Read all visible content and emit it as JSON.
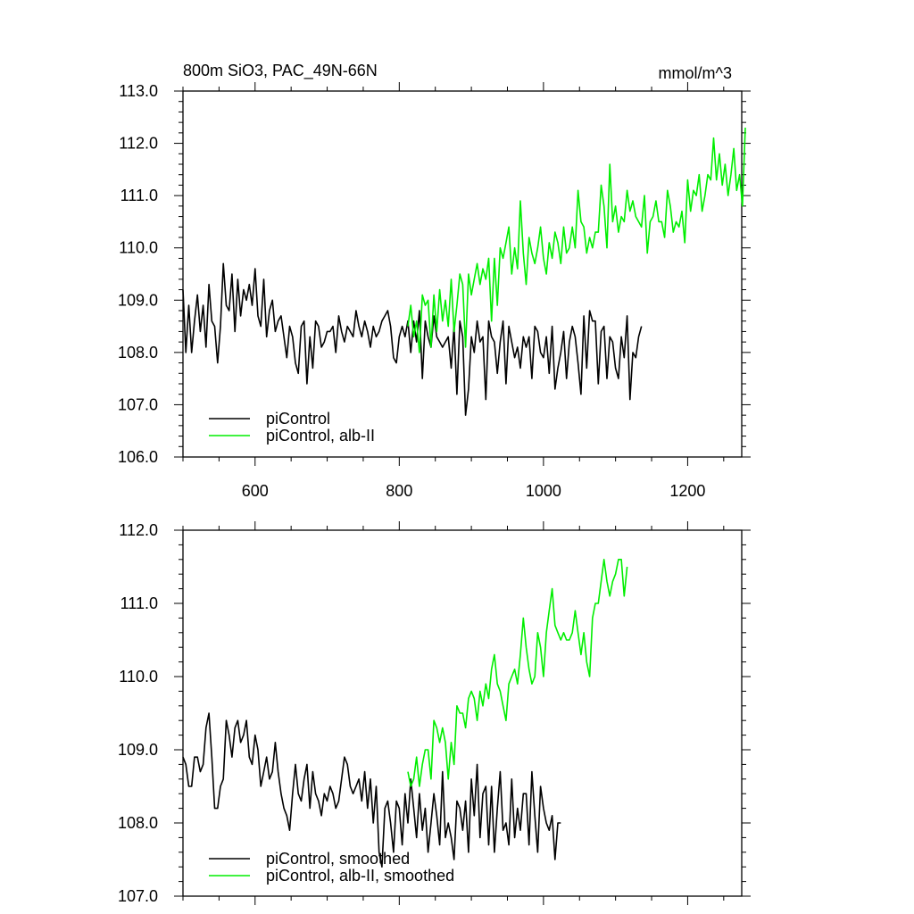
{
  "figure": {
    "title": "800m SiO3, PAC_49N-66N",
    "units": "mmol/m^3"
  },
  "colors": {
    "control": "#000000",
    "alb": "#00ee00",
    "axis": "#000000"
  },
  "chart_data": [
    {
      "type": "line",
      "xlim": [
        500,
        1275
      ],
      "ylim": [
        106.0,
        113.0
      ],
      "xticks": [
        600,
        800,
        1000,
        1200
      ],
      "xtick_labels": [
        "600",
        "800",
        "1000",
        "1200"
      ],
      "yticks": [
        106,
        107,
        108,
        109,
        110,
        111,
        112,
        113
      ],
      "ytick_labels": [
        "106.0",
        "107.0",
        "108.0",
        "109.0",
        "110.0",
        "111.0",
        "112.0",
        "113.0"
      ],
      "legend": "bottom-left",
      "series": [
        {
          "name": "piControl",
          "color": "#000000",
          "x_start": 500,
          "x_step": 4,
          "values": [
            109.2,
            108.0,
            108.9,
            108.0,
            108.6,
            109.1,
            108.4,
            108.9,
            108.1,
            109.3,
            108.6,
            108.5,
            107.8,
            108.5,
            109.7,
            108.9,
            108.8,
            109.5,
            108.4,
            109.4,
            108.7,
            109.2,
            109.0,
            109.3,
            108.9,
            109.6,
            108.7,
            108.5,
            109.4,
            108.3,
            108.8,
            109.0,
            108.4,
            108.6,
            108.7,
            108.3,
            107.9,
            108.5,
            108.3,
            107.8,
            107.6,
            108.5,
            108.6,
            107.4,
            108.3,
            107.7,
            108.6,
            108.5,
            108.1,
            108.2,
            108.4,
            108.4,
            108.5,
            108.0,
            108.7,
            108.4,
            108.2,
            108.5,
            108.4,
            108.3,
            108.8,
            108.5,
            108.3,
            108.6,
            108.4,
            108.1,
            108.5,
            108.3,
            108.4,
            108.6,
            108.7,
            108.8,
            108.5,
            107.9,
            107.8,
            108.3,
            108.5,
            108.3,
            108.6,
            108.0,
            108.6,
            108.2,
            108.8,
            107.5,
            108.6,
            108.3,
            108.1,
            108.7,
            108.3,
            108.2,
            108.1,
            108.2,
            108.3,
            107.7,
            108.5,
            107.2,
            108.6,
            108.3,
            106.8,
            107.3,
            108.3,
            108.0,
            108.6,
            108.2,
            108.3,
            107.1,
            108.6,
            108.3,
            108.2,
            107.6,
            108.2,
            108.6,
            107.4,
            108.5,
            108.2,
            107.9,
            108.1,
            107.7,
            108.3,
            108.1,
            108.3,
            107.5,
            108.5,
            108.4,
            108.0,
            107.9,
            108.3,
            107.6,
            108.5,
            107.3,
            107.7,
            108.0,
            108.4,
            107.5,
            108.2,
            108.5,
            108.3,
            107.8,
            107.2,
            108.7,
            107.7,
            108.8,
            108.6,
            108.6,
            107.4,
            108.4,
            108.5,
            107.5,
            108.3,
            108.2,
            107.7,
            107.5,
            108.3,
            107.9,
            108.7,
            107.1,
            108.0,
            107.9,
            108.3,
            108.5
          ]
        },
        {
          "name": "piControl, alb-II",
          "color": "#00ee00",
          "x_start": 812,
          "x_step": 4,
          "values": [
            108.5,
            108.9,
            108.3,
            108.6,
            108.0,
            109.1,
            108.9,
            109.0,
            108.1,
            109.1,
            108.4,
            109.2,
            108.6,
            109.0,
            108.5,
            109.4,
            108.4,
            108.9,
            109.5,
            109.3,
            108.1,
            109.5,
            109.1,
            109.4,
            109.7,
            109.3,
            109.6,
            109.4,
            109.8,
            108.6,
            109.8,
            108.9,
            110.0,
            109.8,
            110.1,
            110.4,
            109.5,
            110.0,
            109.6,
            110.9,
            109.9,
            109.3,
            110.2,
            109.9,
            109.7,
            110.0,
            110.4,
            109.8,
            109.5,
            110.1,
            109.8,
            110.3,
            110.1,
            109.7,
            110.4,
            109.9,
            110.0,
            110.4,
            110.0,
            111.1,
            110.5,
            110.4,
            109.9,
            110.2,
            110.0,
            110.3,
            110.3,
            111.2,
            110.8,
            110.0,
            111.6,
            110.5,
            110.8,
            110.3,
            110.6,
            110.5,
            111.1,
            110.7,
            110.9,
            110.6,
            110.5,
            110.4,
            111.0,
            109.9,
            110.5,
            110.6,
            110.9,
            110.5,
            110.5,
            110.2,
            111.1,
            110.8,
            110.3,
            110.5,
            110.4,
            110.7,
            110.1,
            111.3,
            110.7,
            111.1,
            111.0,
            111.4,
            110.7,
            111.0,
            111.4,
            111.3,
            112.1,
            111.3,
            111.8,
            111.2,
            111.6,
            111.0,
            111.4,
            111.9,
            111.1,
            111.4,
            110.8,
            112.3
          ]
        }
      ]
    },
    {
      "type": "line",
      "xlim": [
        500,
        1275
      ],
      "ylim": [
        107.0,
        112.0
      ],
      "xticks": [
        600,
        800,
        1000,
        1200
      ],
      "yticks": [
        107,
        108,
        109,
        110,
        111,
        112
      ],
      "ytick_labels": [
        "107.0",
        "108.0",
        "109.0",
        "110.0",
        "111.0",
        "112.0"
      ],
      "legend": "bottom-left",
      "series": [
        {
          "name": "piControl, smoothed",
          "color": "#000000",
          "x_start": 500,
          "x_step": 4,
          "values": [
            108.9,
            108.8,
            108.5,
            108.5,
            108.9,
            108.9,
            108.7,
            108.8,
            109.3,
            109.5,
            108.9,
            108.2,
            108.2,
            108.5,
            108.6,
            109.4,
            109.2,
            108.9,
            109.3,
            109.4,
            109.1,
            109.2,
            109.4,
            108.9,
            108.8,
            109.2,
            109.0,
            108.5,
            108.7,
            108.9,
            108.6,
            108.7,
            109.1,
            108.7,
            108.4,
            108.2,
            108.1,
            107.9,
            108.4,
            108.8,
            108.4,
            108.3,
            108.6,
            108.8,
            108.2,
            108.7,
            108.4,
            108.3,
            108.1,
            108.4,
            108.3,
            108.5,
            108.4,
            108.2,
            108.3,
            108.6,
            108.9,
            108.8,
            108.5,
            108.4,
            108.5,
            108.6,
            108.3,
            108.7,
            108.2,
            108.6,
            108.0,
            108.5,
            107.6,
            107.4,
            108.2,
            108.3,
            108.0,
            107.6,
            108.3,
            108.2,
            107.7,
            108.4,
            108.0,
            108.6,
            108.2,
            107.8,
            108.4,
            107.9,
            108.2,
            107.6,
            108.0,
            108.4,
            108.1,
            107.7,
            108.7,
            107.8,
            108.0,
            107.8,
            107.5,
            108.3,
            108.2,
            107.9,
            108.3,
            107.6,
            108.6,
            108.1,
            108.8,
            107.8,
            108.4,
            108.5,
            107.7,
            108.5,
            107.6,
            108.2,
            108.7,
            107.9,
            108.0,
            107.7,
            108.6,
            107.8,
            108.2,
            107.9,
            108.4,
            108.4,
            107.7,
            108.7,
            108.1,
            107.6,
            108.5,
            108.2,
            108.0,
            107.9,
            108.1,
            107.5,
            108.0,
            108.0
          ]
        },
        {
          "name": "piControl, alb-II, smoothed",
          "color": "#00ee00",
          "x_start": 812,
          "x_step": 4,
          "values": [
            108.7,
            108.5,
            108.6,
            108.9,
            108.5,
            108.8,
            109.0,
            109.0,
            108.6,
            109.4,
            109.3,
            109.1,
            109.3,
            109.1,
            108.6,
            109.1,
            108.8,
            109.6,
            109.5,
            109.5,
            109.3,
            109.7,
            109.8,
            109.7,
            109.4,
            109.8,
            109.6,
            109.9,
            109.7,
            110.1,
            110.3,
            109.9,
            109.8,
            109.6,
            109.4,
            109.9,
            110.0,
            110.1,
            109.9,
            110.3,
            110.8,
            110.4,
            110.1,
            109.9,
            110.0,
            110.6,
            110.4,
            110.0,
            110.6,
            110.9,
            111.2,
            110.7,
            110.6,
            110.5,
            110.6,
            110.5,
            110.5,
            110.6,
            110.9,
            110.6,
            110.3,
            110.6,
            110.2,
            110.0,
            110.8,
            111.0,
            111.0,
            111.3,
            111.6,
            111.3,
            111.1,
            111.3,
            111.4,
            111.6,
            111.6,
            111.1,
            111.5
          ]
        }
      ]
    }
  ]
}
